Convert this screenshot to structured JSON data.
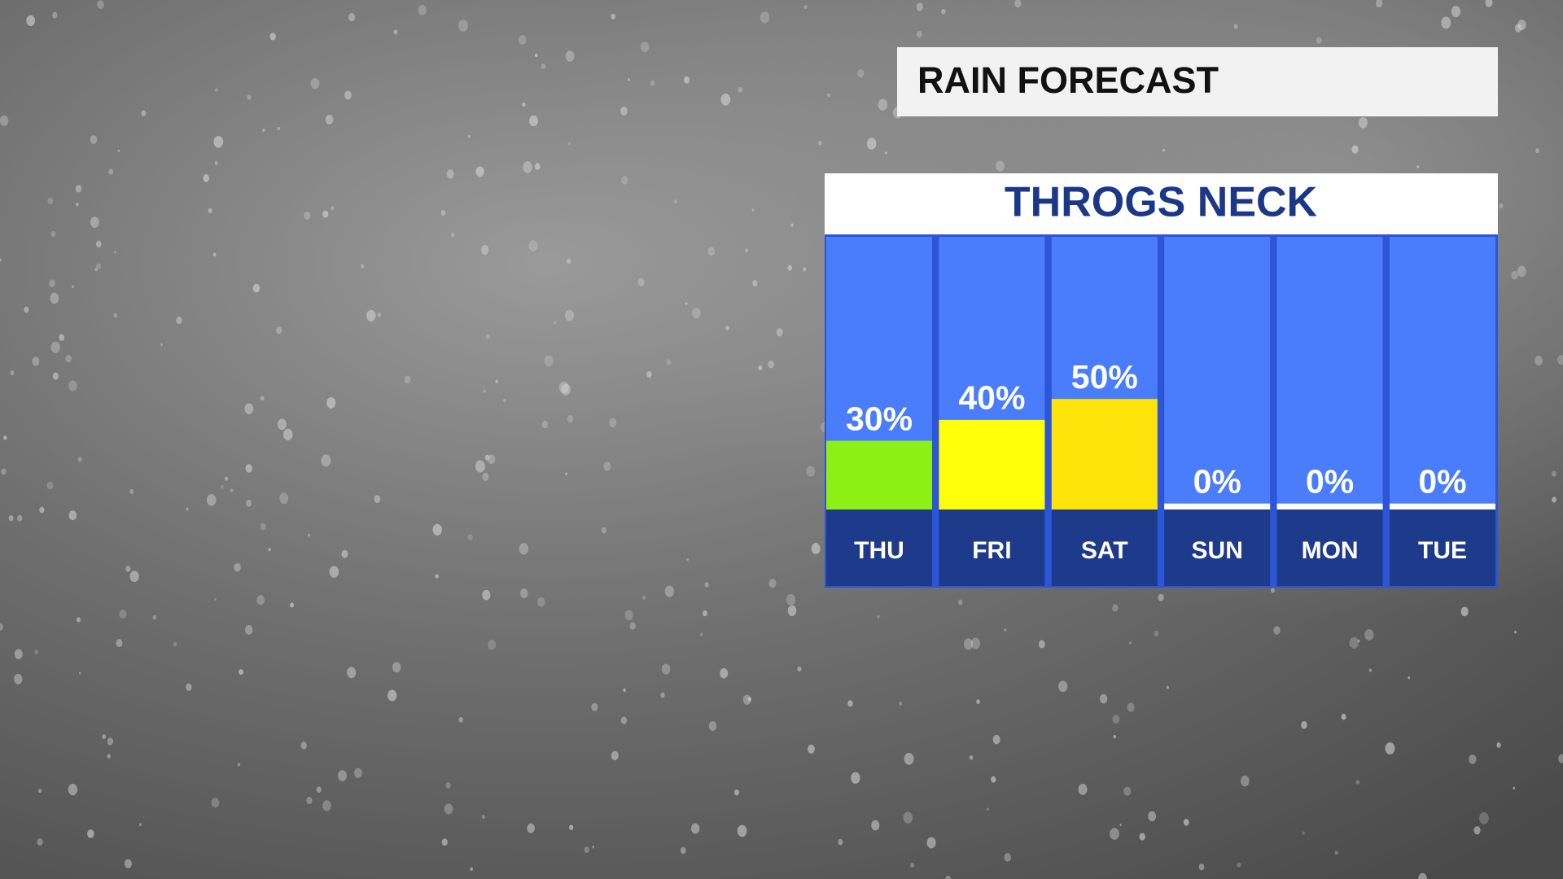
{
  "chart_data": {
    "type": "bar",
    "title": "RAIN FORECAST",
    "subtitle": "THROGS NECK",
    "categories": [
      "THU",
      "FRI",
      "SAT",
      "SUN",
      "MON",
      "TUE"
    ],
    "values": [
      30,
      40,
      50,
      0,
      0,
      0
    ],
    "value_labels": [
      "30%",
      "40%",
      "50%",
      "0%",
      "0%",
      "0%"
    ],
    "colors": [
      "#8cf014",
      "#ffff0a",
      "#ffe40c",
      "#ffffff",
      "#ffffff",
      "#ffffff"
    ]
  }
}
